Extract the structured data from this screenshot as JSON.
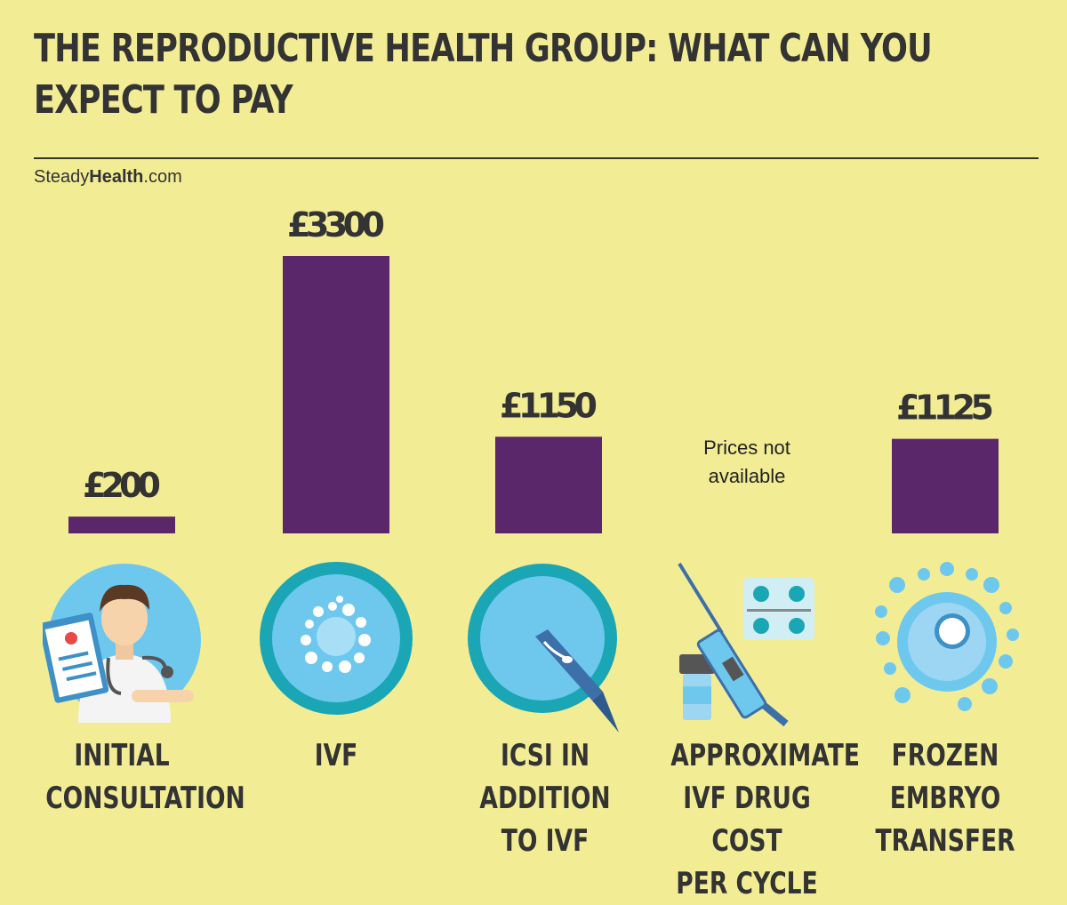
{
  "title": "THE REPRODUCTIVE HEALTH GROUP: WHAT CAN YOU EXPECT TO PAY",
  "brand": {
    "prefix": "Steady",
    "bold": "Health",
    "suffix": ".com"
  },
  "colors": {
    "background": "#f2ed95",
    "bar": "#5a276b",
    "text": "#333333",
    "icon_blue": "#6ec8ee",
    "icon_teal": "#1aa6b5"
  },
  "chart_data": {
    "type": "bar",
    "categories": [
      "INITIAL CONSULTATION",
      "IVF",
      "ICSI IN ADDITION TO IVF",
      "APPROXIMATE IVF DRUG COST PER CYCLE",
      "FROZEN EMBRYO TRANSFER"
    ],
    "values": [
      200,
      3300,
      1150,
      null,
      1125
    ],
    "value_labels": [
      "£200",
      "£3300",
      "£1150",
      "",
      "£1125"
    ],
    "unit": "£",
    "annotations": [
      "Prices not available"
    ]
  },
  "categories_display": [
    [
      "INITIAL",
      "CONSULTATION"
    ],
    [
      "IVF"
    ],
    [
      "ICSI IN",
      "ADDITION",
      "TO IVF"
    ],
    [
      "APPROXIMATE",
      "IVF DRUG COST",
      "PER CYCLE"
    ],
    [
      "FROZEN",
      "EMBRYO",
      "TRANSFER"
    ]
  ],
  "na_note": [
    "Prices not",
    "available"
  ],
  "icons": [
    "doctor-icon",
    "ivf-dish-icon",
    "icsi-dish-icon",
    "syringe-pills-icon",
    "frozen-embryo-icon"
  ]
}
